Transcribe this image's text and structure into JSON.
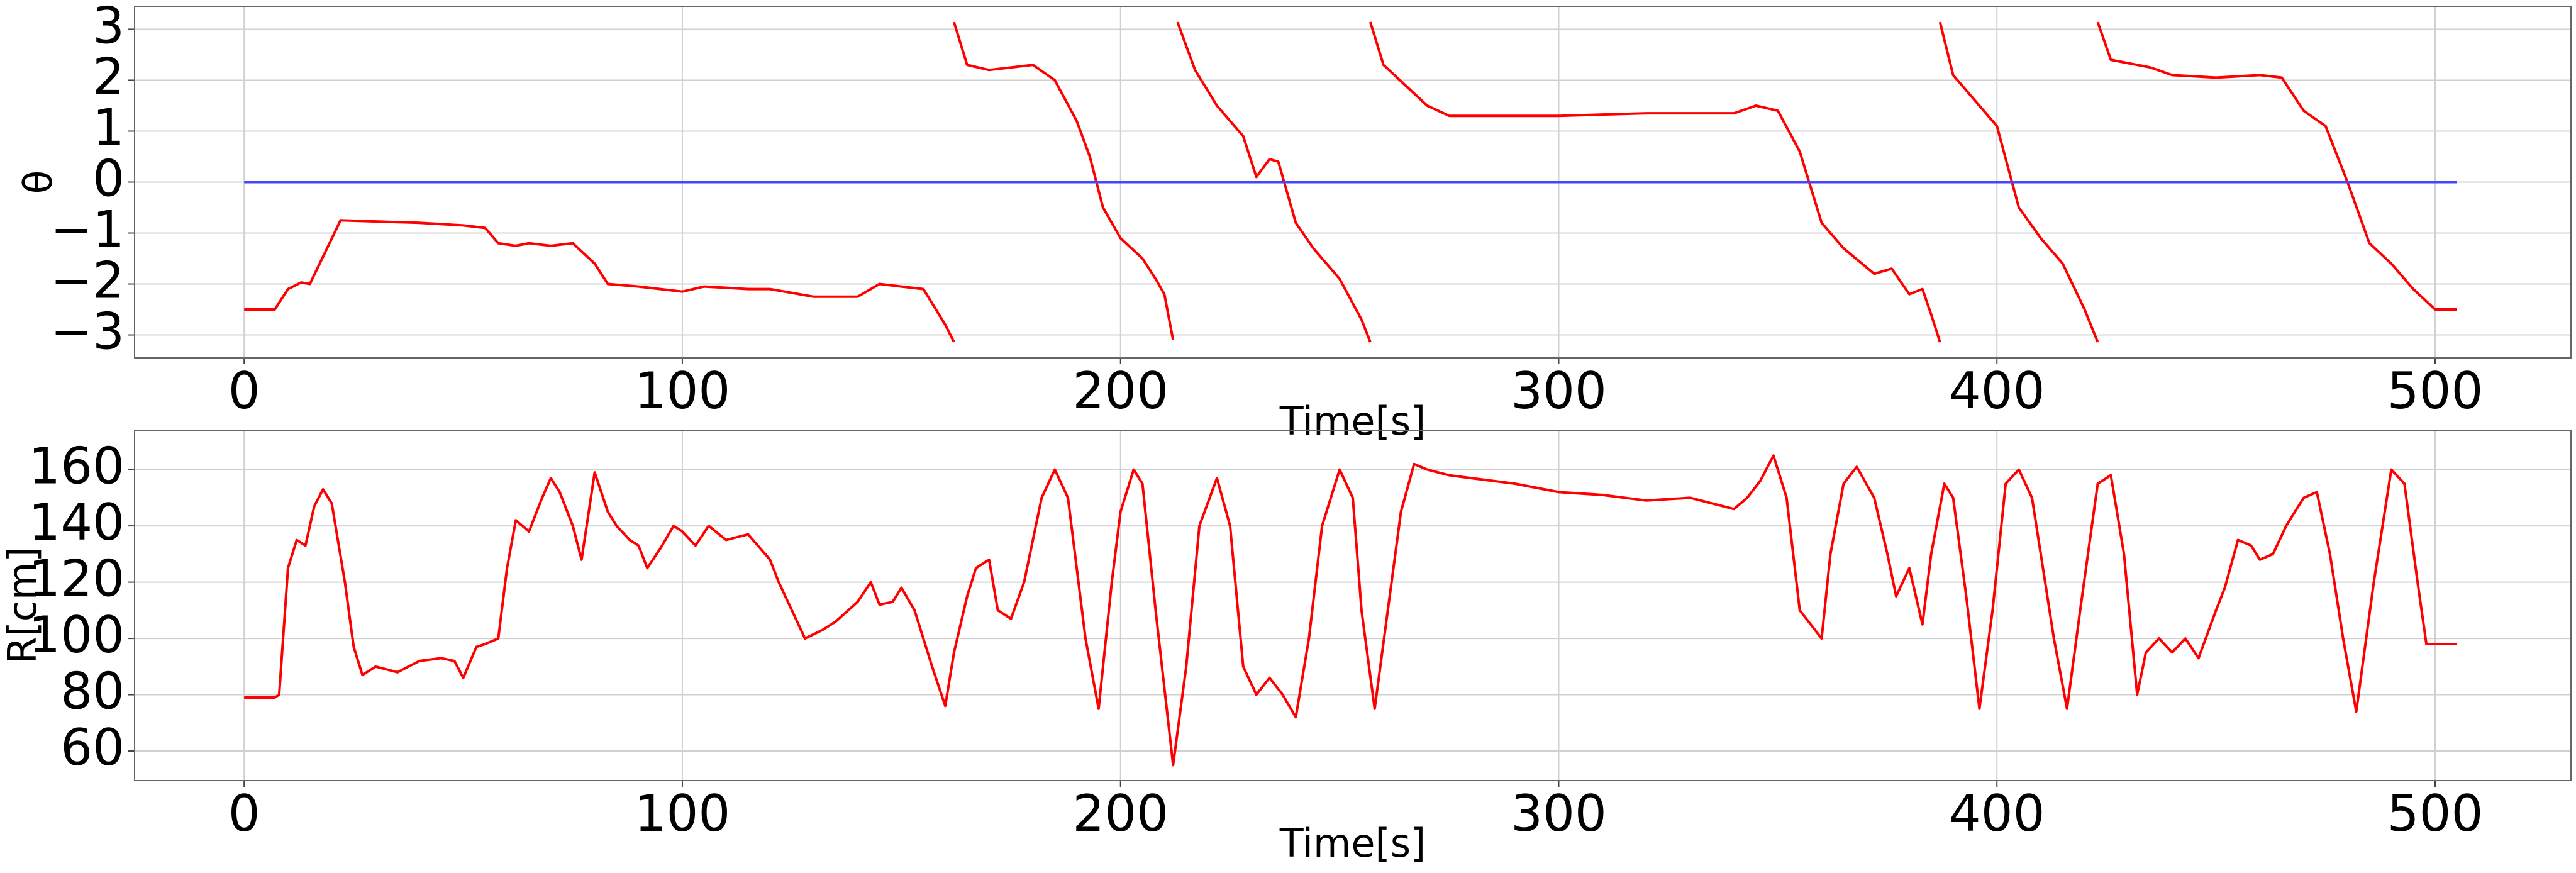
{
  "chart_data": [
    {
      "type": "line",
      "xlabel": "Time[s]",
      "ylabel": "θ",
      "xlim": [
        -25,
        531
      ],
      "ylim": [
        -3.45,
        3.45
      ],
      "xticks": [
        0,
        100,
        200,
        300,
        400,
        500
      ],
      "yticks": [
        {
          "value": -3,
          "label": "−3"
        },
        {
          "value": -2,
          "label": "−2"
        },
        {
          "value": -1,
          "label": "−1"
        },
        0,
        1,
        2,
        3
      ],
      "grid": true,
      "series": [
        {
          "color": "#ff0000",
          "x": [
            0,
            7,
            10,
            13,
            15,
            22,
            40,
            50,
            55,
            58,
            62,
            65,
            70,
            75,
            80,
            83,
            90,
            100,
            105,
            115,
            120,
            130,
            140,
            145,
            150,
            155,
            160,
            162,
            162,
            162,
            165,
            170,
            180,
            185,
            190,
            193,
            196,
            200,
            205,
            208,
            210,
            212,
            212,
            213,
            217,
            222,
            228,
            231,
            234,
            236,
            240,
            244,
            250,
            255,
            257,
            257,
            257,
            260,
            265,
            270,
            275,
            285,
            300,
            320,
            340,
            345,
            350,
            355,
            360,
            365,
            372,
            376,
            380,
            383,
            385,
            387,
            387,
            387,
            390,
            395,
            400,
            405,
            410,
            415,
            420,
            423,
            423,
            423,
            426,
            435,
            440,
            450,
            460,
            465,
            470,
            475,
            480,
            485,
            490,
            495,
            500,
            505
          ],
          "values": [
            -2.5,
            -2.5,
            -2.1,
            -1.97,
            -2.0,
            -0.75,
            -0.8,
            -0.85,
            -0.9,
            -1.2,
            -1.25,
            -1.2,
            -1.25,
            -1.2,
            -1.6,
            -2.0,
            -2.05,
            -2.15,
            -2.05,
            -2.1,
            -2.1,
            -2.25,
            -2.25,
            -2.0,
            -2.05,
            -2.1,
            -2.8,
            -3.14,
            null,
            3.14,
            2.3,
            2.2,
            2.3,
            2.0,
            1.2,
            0.5,
            -0.5,
            -1.1,
            -1.5,
            -1.9,
            -2.2,
            -3.1,
            null,
            3.14,
            2.2,
            1.5,
            0.9,
            0.1,
            0.45,
            0.4,
            -0.8,
            -1.3,
            -1.9,
            -2.7,
            -3.14,
            null,
            3.14,
            2.3,
            1.9,
            1.5,
            1.3,
            1.3,
            1.3,
            1.35,
            1.35,
            1.5,
            1.4,
            0.6,
            -0.8,
            -1.3,
            -1.8,
            -1.7,
            -2.2,
            -2.1,
            -2.6,
            -3.14,
            null,
            3.14,
            2.1,
            1.6,
            1.1,
            -0.5,
            -1.1,
            -1.6,
            -2.5,
            -3.14,
            null,
            3.14,
            2.4,
            2.25,
            2.1,
            2.05,
            2.1,
            2.05,
            1.4,
            1.1,
            0.0,
            -1.2,
            -1.6,
            -2.1,
            -2.5,
            -2.5
          ]
        },
        {
          "color": "#4646ff",
          "x": [
            0,
            505
          ],
          "values": [
            0,
            0
          ]
        }
      ]
    },
    {
      "type": "line",
      "xlabel": "Time[s]",
      "ylabel": "R[cm]",
      "xlim": [
        -25,
        531
      ],
      "ylim": [
        49.5,
        174
      ],
      "xticks": [
        0,
        100,
        200,
        300,
        400,
        500
      ],
      "yticks": [
        60,
        80,
        100,
        120,
        140,
        160
      ],
      "grid": true,
      "series": [
        {
          "color": "#ff0000",
          "x": [
            0,
            7,
            8,
            10,
            12,
            14,
            16,
            18,
            20,
            23,
            25,
            27,
            30,
            35,
            40,
            45,
            48,
            50,
            53,
            55,
            58,
            60,
            62,
            65,
            68,
            70,
            72,
            75,
            77,
            80,
            83,
            85,
            88,
            90,
            92,
            95,
            98,
            100,
            103,
            106,
            110,
            115,
            120,
            122,
            125,
            128,
            132,
            135,
            140,
            143,
            145,
            148,
            150,
            153,
            157,
            160,
            162,
            165,
            167,
            170,
            172,
            175,
            178,
            182,
            185,
            188,
            192,
            195,
            198,
            200,
            203,
            205,
            208,
            212,
            215,
            218,
            222,
            225,
            228,
            231,
            234,
            237,
            240,
            243,
            246,
            250,
            253,
            255,
            258,
            261,
            264,
            267,
            270,
            275,
            280,
            290,
            300,
            310,
            320,
            330,
            340,
            343,
            346,
            349,
            352,
            355,
            360,
            362,
            365,
            368,
            372,
            375,
            377,
            380,
            383,
            385,
            388,
            390,
            393,
            396,
            399,
            402,
            405,
            408,
            411,
            413,
            416,
            419,
            423,
            426,
            429,
            432,
            434,
            437,
            440,
            443,
            446,
            450,
            452,
            455,
            458,
            460,
            463,
            466,
            470,
            473,
            476,
            479,
            482,
            486,
            490,
            493,
            496,
            498,
            505
          ],
          "values": [
            79,
            79,
            80,
            125,
            135,
            133,
            147,
            153,
            148,
            120,
            97,
            87,
            90,
            88,
            92,
            93,
            92,
            86,
            97,
            98,
            100,
            125,
            142,
            138,
            150,
            157,
            152,
            140,
            128,
            159,
            145,
            140,
            135,
            133,
            125,
            132,
            140,
            138,
            133,
            140,
            135,
            137,
            128,
            120,
            110,
            100,
            103,
            106,
            113,
            120,
            112,
            113,
            118,
            110,
            90,
            76,
            95,
            115,
            125,
            128,
            110,
            107,
            120,
            150,
            160,
            150,
            100,
            75,
            120,
            145,
            160,
            155,
            110,
            55,
            90,
            140,
            157,
            140,
            90,
            80,
            86,
            80,
            72,
            100,
            140,
            160,
            150,
            110,
            75,
            110,
            145,
            162,
            160,
            158,
            157,
            155,
            152,
            151,
            149,
            150,
            146,
            150,
            156,
            165,
            150,
            110,
            100,
            130,
            155,
            161,
            150,
            130,
            115,
            125,
            105,
            130,
            155,
            150,
            115,
            75,
            110,
            155,
            160,
            150,
            120,
            100,
            75,
            110,
            155,
            158,
            130,
            80,
            95,
            100,
            95,
            100,
            93,
            110,
            118,
            135,
            133,
            128,
            130,
            140,
            150,
            152,
            130,
            100,
            74,
            120,
            160,
            155,
            120,
            98,
            98
          ]
        }
      ]
    }
  ]
}
